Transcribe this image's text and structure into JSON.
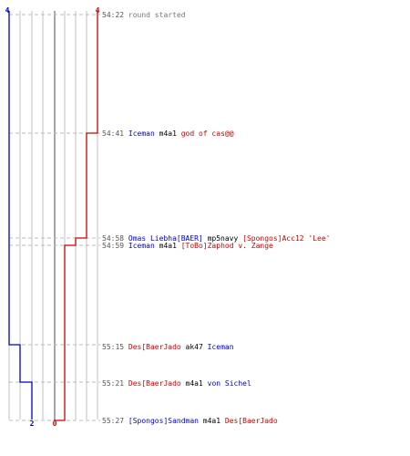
{
  "score_axis": {
    "blue_top": "4",
    "red_top": "4",
    "blue_bottom": "2",
    "red_bottom": "0"
  },
  "colors": {
    "blue_team": "#0000cc",
    "red_team": "#cc0000",
    "time": "#555555",
    "weapon": "#000000",
    "system": "#777777",
    "grid": "#c0c0c0",
    "guide": "#bbbbbb"
  },
  "chart_data": {
    "type": "line",
    "title": "",
    "xlabel": "",
    "ylabel": "",
    "x": [
      "54:22",
      "54:41",
      "54:58",
      "54:59",
      "55:15",
      "55:21",
      "55:27"
    ],
    "series": [
      {
        "values": [
          4,
          4,
          4,
          4,
          3,
          2,
          2
        ]
      },
      {
        "values": [
          4,
          3,
          2,
          1,
          1,
          1,
          0
        ]
      }
    ]
  },
  "events": [
    {
      "time": "54:22",
      "parts": [
        {
          "text": "round started",
          "role": "system"
        }
      ]
    },
    {
      "time": "54:41",
      "parts": [
        {
          "text": "Iceman",
          "role": "blue"
        },
        {
          "text": "m4a1",
          "role": "weapon"
        },
        {
          "text": "god of cas@@",
          "role": "red"
        }
      ]
    },
    {
      "time": "54:58",
      "parts": [
        {
          "text": "Omas Liebha[BAER]",
          "role": "blue"
        },
        {
          "text": "mp5navy",
          "role": "weapon"
        },
        {
          "text": "[Spongos]Acc12 'Lee'",
          "role": "red"
        }
      ]
    },
    {
      "time": "54:59",
      "parts": [
        {
          "text": "Iceman",
          "role": "blue"
        },
        {
          "text": "m4a1",
          "role": "weapon"
        },
        {
          "text": "[ToBo]Zaphod v. Zange",
          "role": "red"
        }
      ]
    },
    {
      "time": "55:15",
      "parts": [
        {
          "text": "Des[BaerJado",
          "role": "red"
        },
        {
          "text": "ak47",
          "role": "weapon"
        },
        {
          "text": "Iceman",
          "role": "blue"
        }
      ]
    },
    {
      "time": "55:21",
      "parts": [
        {
          "text": "Des[BaerJado",
          "role": "red"
        },
        {
          "text": "m4a1",
          "role": "weapon"
        },
        {
          "text": "von Sichel",
          "role": "blue"
        }
      ]
    },
    {
      "time": "55:27",
      "parts": [
        {
          "text": "[Spongos]Sandman",
          "role": "blue"
        },
        {
          "text": "m4a1",
          "role": "weapon"
        },
        {
          "text": "Des[BaerJado",
          "role": "red"
        }
      ]
    }
  ]
}
